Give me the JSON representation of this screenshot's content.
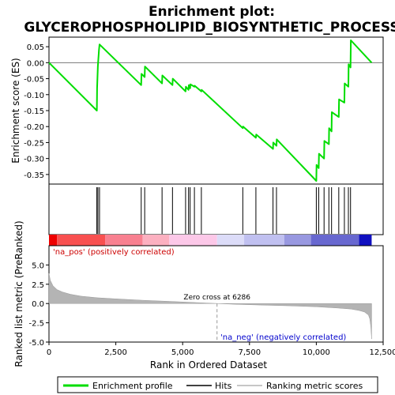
{
  "chart_data": {
    "type": "line",
    "title_line1": "Enrichment plot:",
    "title_line2": "GLYCEROPHOSPHOLIPID_BIOSYNTHETIC_PROCESS",
    "xlabel": "Rank in Ordered Dataset",
    "x_range": [
      0,
      12500
    ],
    "x_ticks": [
      0,
      2500,
      5000,
      7500,
      10000,
      12500
    ],
    "x_tick_labels": [
      "0",
      "2,500",
      "5,000",
      "7,500",
      "10,000",
      "12,500"
    ],
    "es_panel": {
      "ylabel": "Enrichment score (ES)",
      "ylim": [
        -0.38,
        0.08
      ],
      "y_ticks": [
        0.05,
        0.0,
        -0.05,
        -0.1,
        -0.15,
        -0.2,
        -0.25,
        -0.3,
        -0.35
      ],
      "y_tick_labels": [
        "0.05",
        "0.00",
        "-0.05",
        "-0.10",
        "-0.15",
        "-0.20",
        "-0.25",
        "-0.30",
        "-0.35"
      ],
      "line_color": "#00dd00",
      "x": [
        0,
        1790,
        1800,
        1830,
        1870,
        1890,
        3450,
        3460,
        3580,
        3590,
        4230,
        4240,
        4620,
        4630,
        5110,
        5120,
        5220,
        5230,
        5280,
        5290,
        5440,
        5450,
        5700,
        5710,
        7250,
        7260,
        7740,
        7750,
        8380,
        8390,
        8510,
        8520,
        10000,
        10010,
        10090,
        10100,
        10290,
        10300,
        10470,
        10480,
        10570,
        10580,
        10840,
        10850,
        11050,
        11060,
        11200,
        11210,
        11280,
        11290,
        12070
      ],
      "y": [
        0.0,
        -0.15,
        -0.08,
        -0.01,
        0.04,
        0.057,
        -0.07,
        -0.035,
        -0.045,
        -0.012,
        -0.065,
        -0.04,
        -0.07,
        -0.05,
        -0.09,
        -0.075,
        -0.085,
        -0.07,
        -0.08,
        -0.068,
        -0.075,
        -0.072,
        -0.09,
        -0.085,
        -0.205,
        -0.2,
        -0.235,
        -0.225,
        -0.27,
        -0.25,
        -0.26,
        -0.24,
        -0.37,
        -0.32,
        -0.33,
        -0.285,
        -0.3,
        -0.245,
        -0.255,
        -0.205,
        -0.215,
        -0.155,
        -0.17,
        -0.115,
        -0.125,
        -0.065,
        -0.075,
        -0.005,
        -0.015,
        0.07,
        0.0
      ]
    },
    "hits": [
      1790,
      1830,
      1890,
      3450,
      3580,
      4230,
      4620,
      5110,
      5220,
      5280,
      5440,
      5700,
      7250,
      7740,
      8380,
      8510,
      10000,
      10090,
      10290,
      10470,
      10570,
      10840,
      11050,
      11200,
      11280
    ],
    "color_bar": [
      {
        "from": 0,
        "to": 300,
        "color": "#ee0000"
      },
      {
        "from": 300,
        "to": 2100,
        "color": "#f85050"
      },
      {
        "from": 2100,
        "to": 3500,
        "color": "#f88090"
      },
      {
        "from": 3500,
        "to": 4500,
        "color": "#fcb0c0"
      },
      {
        "from": 4500,
        "to": 6286,
        "color": "#fcc8e8"
      },
      {
        "from": 6286,
        "to": 7300,
        "color": "#dcdcf8"
      },
      {
        "from": 7300,
        "to": 8800,
        "color": "#c0c0f0"
      },
      {
        "from": 8800,
        "to": 9800,
        "color": "#9898e0"
      },
      {
        "from": 9800,
        "to": 11600,
        "color": "#6868d0"
      },
      {
        "from": 11600,
        "to": 12070,
        "color": "#1010c0"
      }
    ],
    "metric_panel": {
      "ylabel": "Ranked list metric (PreRanked)",
      "ylim": [
        -5.0,
        7.5
      ],
      "y_ticks": [
        5.0,
        2.5,
        0.0,
        -2.5,
        -5.0
      ],
      "y_tick_labels": [
        "5.0",
        "2.5",
        "0.0",
        "-2.5",
        "-5.0"
      ],
      "fill_color": "#b4b4b4",
      "curve_x": [
        0,
        50,
        150,
        300,
        500,
        800,
        1200,
        1800,
        2500,
        3500,
        4500,
        5500,
        6286,
        7000,
        8000,
        9000,
        10000,
        10800,
        11300,
        11600,
        11800,
        11950,
        12000,
        12040,
        12070
      ],
      "curve_y": [
        3.9,
        3.0,
        2.3,
        1.8,
        1.5,
        1.2,
        0.95,
        0.75,
        0.6,
        0.42,
        0.28,
        0.12,
        0.0,
        -0.1,
        -0.2,
        -0.3,
        -0.42,
        -0.58,
        -0.72,
        -0.9,
        -1.1,
        -1.5,
        -2.0,
        -3.0,
        -4.6
      ],
      "zero_cross_label": "Zero cross at 6286",
      "zero_cross": 6286,
      "pos_label": "'na_pos' (positively correlated)",
      "neg_label": "'na_neg' (negatively correlated)",
      "pos_color": "#cc0000",
      "neg_color": "#0000cc"
    },
    "legend": {
      "placement": "bottom",
      "items": [
        {
          "label": "Enrichment profile",
          "color": "#00dd00"
        },
        {
          "label": "Hits",
          "color": "#000000"
        },
        {
          "label": "Ranking metric scores",
          "color": "#b4b4b4"
        }
      ]
    }
  }
}
